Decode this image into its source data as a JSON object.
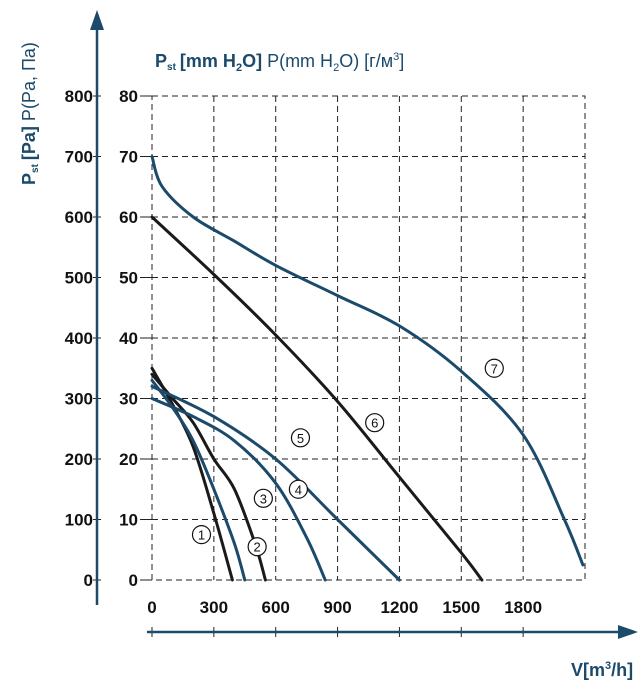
{
  "chart_data": {
    "type": "line",
    "title_top": {
      "bold": "P st [mm H2O]",
      "bold_parts": [
        "P",
        "st",
        "[mm H",
        "2",
        "O]"
      ],
      "normal_parts": [
        " P(mm H",
        "2",
        "O) [г/м",
        "3",
        "]"
      ]
    },
    "ylabel": {
      "bold_parts": [
        "P",
        "st",
        "[Pa]"
      ],
      "normal": "P(Pa, Па)"
    },
    "xlabel": {
      "parts": [
        "V[m",
        "3",
        "/h]"
      ]
    },
    "x_ticks": [
      "0",
      "300",
      "600",
      "900",
      "1200",
      "1500",
      "1800"
    ],
    "y_ticks_pa": [
      "0",
      "100",
      "200",
      "300",
      "400",
      "500",
      "600",
      "700",
      "800"
    ],
    "y_ticks_mm": [
      "0",
      "10",
      "20",
      "30",
      "40",
      "50",
      "60",
      "70",
      "80"
    ],
    "xlim": [
      0,
      2100
    ],
    "ylim": [
      0,
      800
    ],
    "grid": true,
    "series": [
      {
        "label": "1",
        "color": "#1a1a1a",
        "points": [
          [
            0,
            350
          ],
          [
            100,
            290
          ],
          [
            200,
            220
          ],
          [
            300,
            110
          ],
          [
            390,
            0
          ]
        ],
        "marker": [
          240,
          75
        ]
      },
      {
        "label": "2",
        "color": "#1b4a6b",
        "points": [
          [
            0,
            330
          ],
          [
            100,
            285
          ],
          [
            200,
            230
          ],
          [
            300,
            150
          ],
          [
            400,
            60
          ],
          [
            450,
            0
          ]
        ],
        "marker": [
          510,
          55
        ]
      },
      {
        "label": "3",
        "color": "#1a1a1a",
        "points": [
          [
            0,
            340
          ],
          [
            100,
            300
          ],
          [
            200,
            260
          ],
          [
            300,
            200
          ],
          [
            400,
            150
          ],
          [
            500,
            60
          ],
          [
            550,
            0
          ]
        ],
        "marker": [
          540,
          135
        ]
      },
      {
        "label": "4",
        "color": "#1b4a6b",
        "points": [
          [
            0,
            300
          ],
          [
            200,
            270
          ],
          [
            400,
            230
          ],
          [
            600,
            160
          ],
          [
            750,
            70
          ],
          [
            840,
            0
          ]
        ],
        "marker": [
          710,
          150
        ]
      },
      {
        "label": "5",
        "color": "#1b4a6b",
        "points": [
          [
            0,
            320
          ],
          [
            300,
            270
          ],
          [
            600,
            200
          ],
          [
            900,
            100
          ],
          [
            1200,
            0
          ]
        ],
        "marker": [
          720,
          235
        ]
      },
      {
        "label": "6",
        "color": "#1a1a1a",
        "points": [
          [
            0,
            600
          ],
          [
            300,
            505
          ],
          [
            600,
            405
          ],
          [
            900,
            295
          ],
          [
            1200,
            170
          ],
          [
            1500,
            45
          ],
          [
            1600,
            0
          ]
        ],
        "marker": [
          1080,
          260
        ]
      },
      {
        "label": "7",
        "color": "#1b4a6b",
        "points": [
          [
            0,
            700
          ],
          [
            50,
            650
          ],
          [
            200,
            600
          ],
          [
            400,
            560
          ],
          [
            600,
            520
          ],
          [
            900,
            470
          ],
          [
            1200,
            420
          ],
          [
            1500,
            345
          ],
          [
            1800,
            240
          ],
          [
            2000,
            100
          ],
          [
            2090,
            25
          ]
        ],
        "marker": [
          1660,
          350
        ]
      }
    ]
  }
}
